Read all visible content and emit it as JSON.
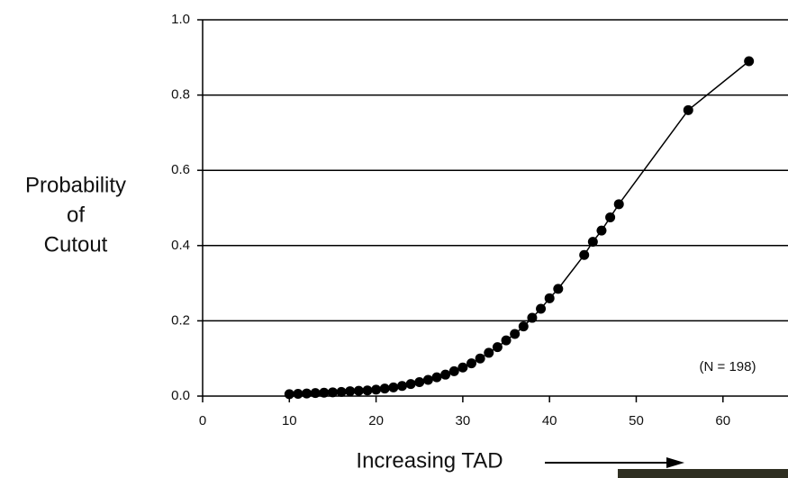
{
  "chart_data": {
    "type": "line",
    "ylabel": [
      "Probability",
      "of",
      "Cutout"
    ],
    "xlabel": "Increasing TAD",
    "annotation": "(N = 198)",
    "x": [
      10,
      11,
      12,
      13,
      14,
      15,
      16,
      17,
      18,
      19,
      20,
      21,
      22,
      23,
      24,
      25,
      26,
      27,
      28,
      29,
      30,
      31,
      32,
      33,
      34,
      35,
      36,
      37,
      38,
      39,
      40,
      41,
      44,
      45,
      46,
      47,
      48,
      56,
      63
    ],
    "values": [
      0.005,
      0.006,
      0.007,
      0.008,
      0.009,
      0.01,
      0.011,
      0.013,
      0.014,
      0.015,
      0.017,
      0.02,
      0.023,
      0.027,
      0.032,
      0.037,
      0.043,
      0.05,
      0.057,
      0.066,
      0.076,
      0.087,
      0.1,
      0.115,
      0.13,
      0.148,
      0.165,
      0.185,
      0.208,
      0.232,
      0.26,
      0.285,
      0.375,
      0.41,
      0.44,
      0.475,
      0.51,
      0.76,
      0.89
    ],
    "color": "#000000",
    "xlim": [
      0,
      67.5
    ],
    "xticks": [
      0,
      10,
      20,
      30,
      40,
      50,
      60
    ],
    "ylim": [
      0,
      1
    ],
    "yticks": [
      {
        "value": 0,
        "label": "0.0"
      },
      0.2,
      0.4,
      0.6,
      0.8,
      {
        "value": 1,
        "label": "1.0"
      }
    ],
    "grid": true
  }
}
